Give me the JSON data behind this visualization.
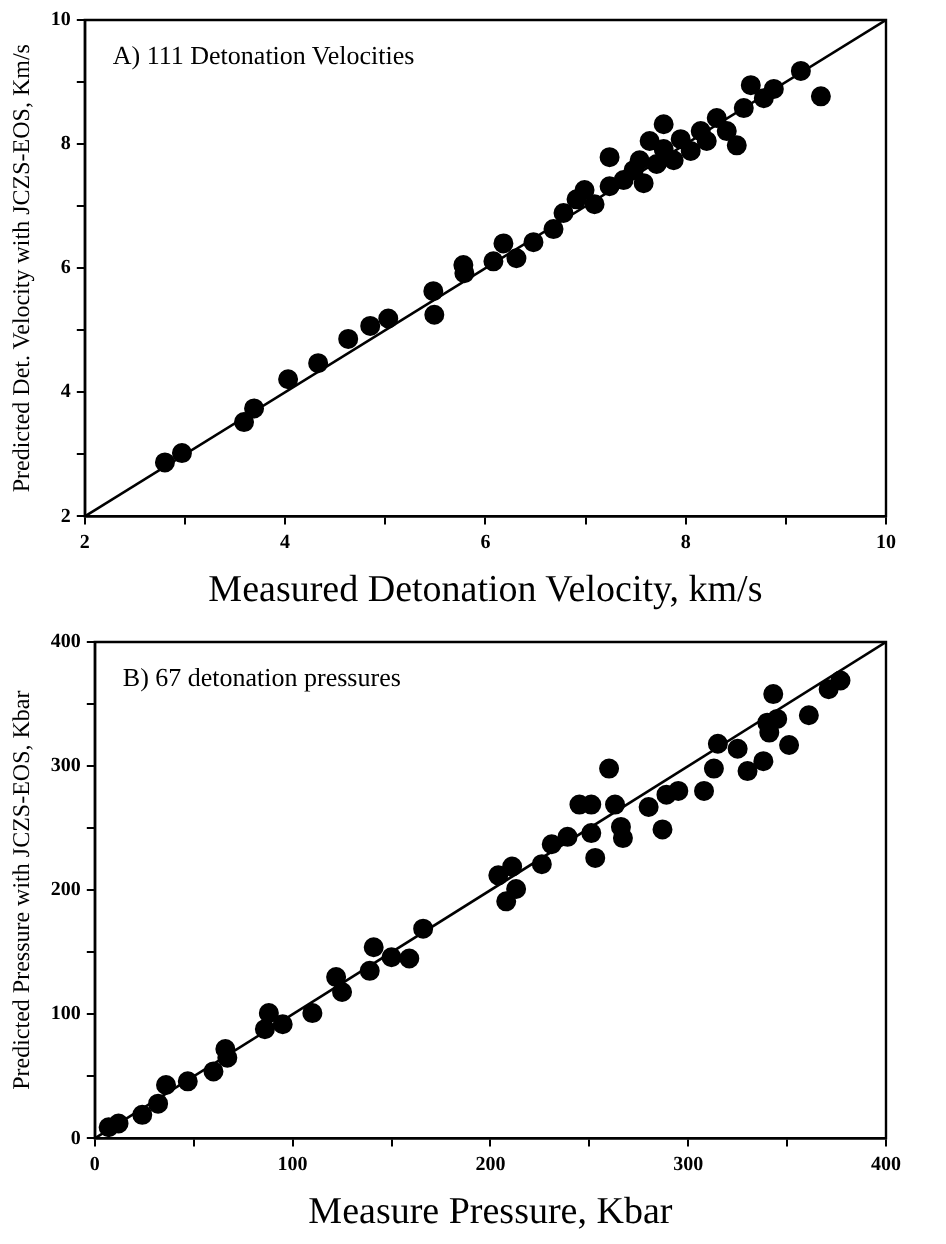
{
  "chart_data": [
    {
      "type": "scatter",
      "xlabel": "Measured Detonation Velocity, km/s",
      "ylabel": "Predicted Det. Velocity with JCZS-EOS, Km/s",
      "annotations": [
        "A) 111 Detonation Velocities"
      ],
      "xlim": [
        2,
        10
      ],
      "ylim": [
        2,
        10
      ],
      "xticks": [
        2,
        {
          "value": 3,
          "label": null
        },
        4,
        {
          "value": 5,
          "label": null
        },
        6,
        {
          "value": 7,
          "label": null
        },
        8,
        {
          "value": 9,
          "label": null
        },
        10
      ],
      "yticks": [
        2,
        {
          "value": 3,
          "label": null
        },
        4,
        {
          "value": 5,
          "label": null
        },
        6,
        {
          "value": 7,
          "label": null
        },
        8,
        {
          "value": 9,
          "label": null
        },
        10
      ],
      "grid": false,
      "legend": false,
      "marker": "circle",
      "series": [
        {
          "color": "#000000",
          "x": [
            2.8,
            2.97,
            3.59,
            3.69,
            4.03,
            4.33,
            4.63,
            4.85,
            5.03,
            5.48,
            5.49,
            5.78,
            5.79,
            6.08,
            6.18,
            6.31,
            6.48,
            6.68,
            6.78,
            6.91,
            6.99,
            7.09,
            7.24,
            7.24,
            7.38,
            7.48,
            7.54,
            7.58,
            7.64,
            7.71,
            7.78,
            7.78,
            7.88,
            7.95,
            8.05,
            8.15,
            8.21,
            8.31,
            8.41,
            8.51,
            8.58,
            8.65,
            8.78,
            8.88,
            9.15,
            9.35
          ],
          "values": [
            2.87,
            3.02,
            3.52,
            3.74,
            4.21,
            4.47,
            4.86,
            5.07,
            5.19,
            5.63,
            5.25,
            6.05,
            5.92,
            6.11,
            6.4,
            6.16,
            6.42,
            6.63,
            6.89,
            7.11,
            7.26,
            7.03,
            7.79,
            7.32,
            7.42,
            7.58,
            7.74,
            7.37,
            8.05,
            7.68,
            8.32,
            7.92,
            7.74,
            8.08,
            7.89,
            8.21,
            8.05,
            8.42,
            8.21,
            7.98,
            8.58,
            8.95,
            8.74,
            8.89,
            9.18,
            8.77
          ]
        },
        {
          "type": "line",
          "color": "#000000",
          "marker": "none",
          "line_style": "solid",
          "x": [
            2,
            10
          ],
          "values": [
            2,
            10
          ]
        }
      ]
    },
    {
      "type": "scatter",
      "xlabel": "Measure Pressure, Kbar",
      "ylabel": "Predicted Pressure with JCZS-EOS, Kbar",
      "annotations": [
        "B) 67 detonation pressures"
      ],
      "xlim": [
        0,
        400
      ],
      "ylim": [
        0,
        400
      ],
      "xticks": [
        0,
        {
          "value": 50,
          "label": null
        },
        100,
        {
          "value": 150,
          "label": null
        },
        200,
        {
          "value": 250,
          "label": null
        },
        300,
        {
          "value": 350,
          "label": null
        },
        400
      ],
      "yticks": [
        0,
        {
          "value": 50,
          "label": null
        },
        100,
        {
          "value": 150,
          "label": null
        },
        200,
        {
          "value": 250,
          "label": null
        },
        300,
        {
          "value": 350,
          "label": null
        },
        400
      ],
      "grid": false,
      "legend": false,
      "marker": "circle",
      "series": [
        {
          "color": "#000000",
          "x": [
            7,
            12,
            24,
            32,
            36,
            47,
            60,
            66,
            67,
            86,
            88,
            95,
            110,
            122,
            125,
            139,
            141,
            150,
            159,
            166,
            204,
            208,
            211,
            213,
            226,
            231,
            239,
            245,
            251,
            251,
            253,
            260,
            263,
            266,
            267,
            280,
            287,
            289,
            295,
            308,
            313,
            315,
            325,
            330,
            338,
            340,
            341,
            343,
            345,
            351,
            361,
            371,
            377
          ],
          "values": [
            9,
            12,
            19,
            28,
            43,
            46,
            54,
            72,
            65,
            88,
            101,
            92,
            101,
            130,
            118,
            135,
            154,
            146,
            145,
            169,
            212,
            191,
            219,
            201,
            221,
            237,
            243,
            269,
            269,
            246,
            226,
            298,
            269,
            251,
            242,
            267,
            249,
            277,
            280,
            280,
            298,
            318,
            314,
            296,
            304,
            335,
            327,
            358,
            338,
            317,
            341,
            362,
            369
          ]
        },
        {
          "type": "line",
          "color": "#000000",
          "marker": "none",
          "line_style": "solid",
          "x": [
            0,
            400
          ],
          "values": [
            0,
            400
          ]
        }
      ]
    }
  ]
}
